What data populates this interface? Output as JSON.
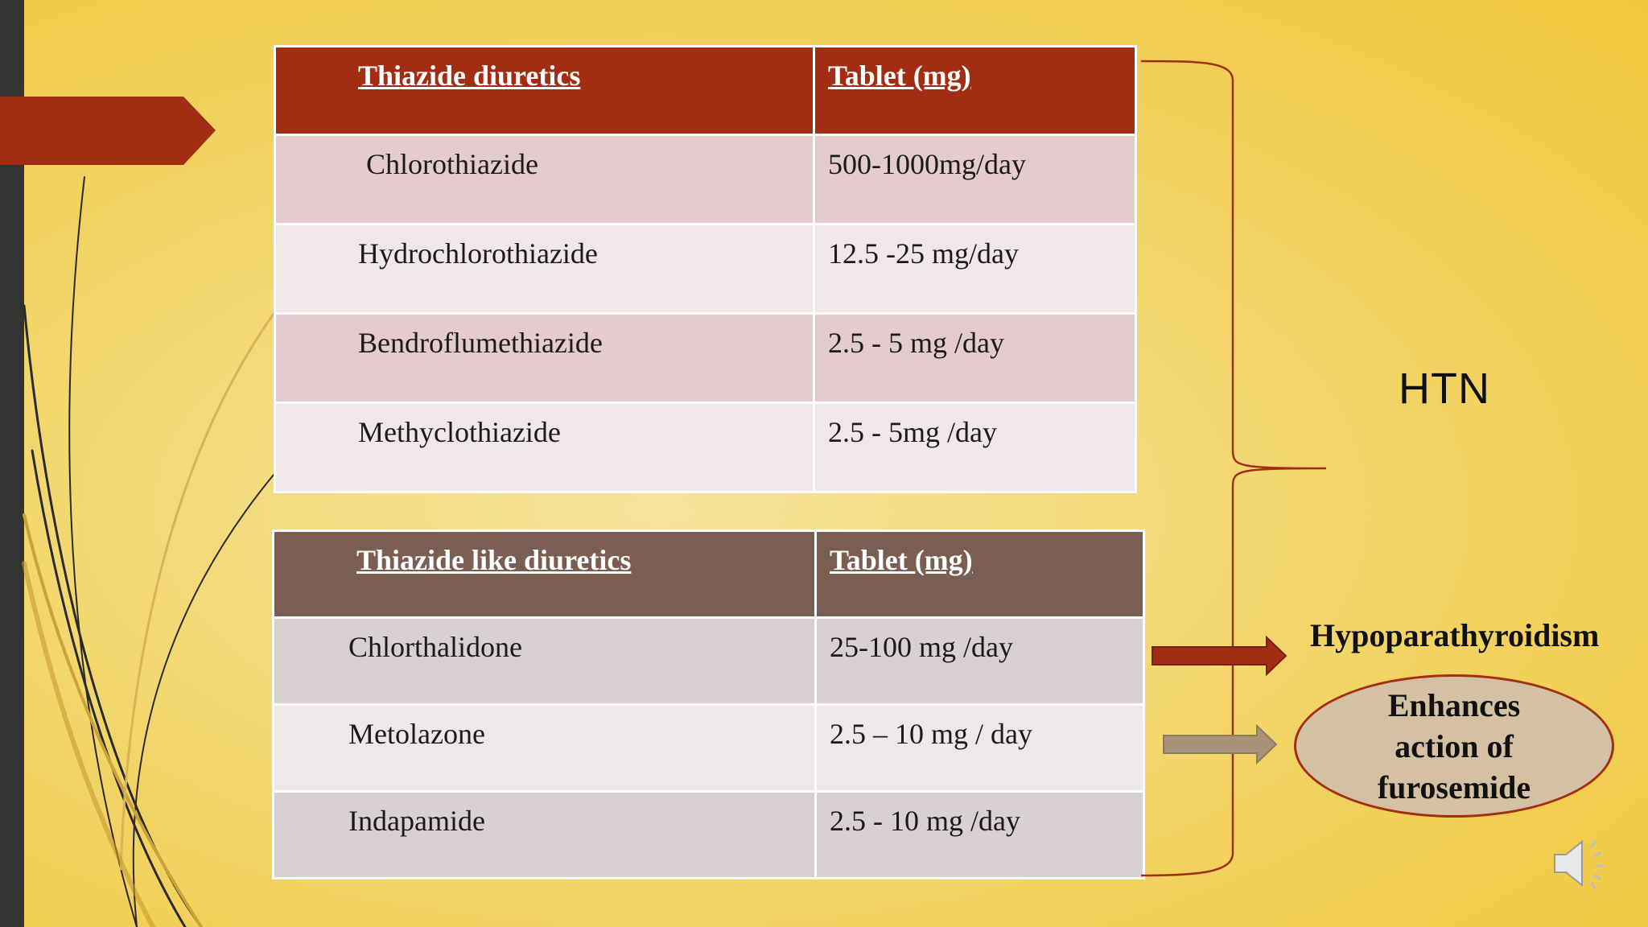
{
  "table1": {
    "header": [
      "Thiazide diuretics",
      "Tablet  (mg)"
    ],
    "rows": [
      [
        "Chlorothiazide",
        "500-1000mg/day"
      ],
      [
        "Hydrochlorothiazide",
        "12.5 -25 mg/day"
      ],
      [
        "Bendroflumethiazide",
        "2.5 - 5 mg /day"
      ],
      [
        "Methyclothiazide",
        "2.5 - 5mg /day"
      ]
    ]
  },
  "table2": {
    "header": [
      "Thiazide like diuretics",
      "Tablet  (mg)"
    ],
    "rows": [
      [
        "Chlorthalidone",
        "25-100 mg /day"
      ],
      [
        "Metolazone",
        "2.5 – 10 mg / day"
      ],
      [
        "Indapamide",
        "2.5 - 10 mg /day"
      ]
    ]
  },
  "right": {
    "htn": "HTN",
    "hypo": "Hypoparathyroidism",
    "ellipse": "Enhances\naction of\nfurosemide"
  },
  "icons": [
    "speaker-icon"
  ],
  "colors": {
    "table1_header": "#a32d12",
    "table2_header": "#7a5e52",
    "arrow_red": "#a32d12",
    "arrow_tan": "#a79177",
    "background": "#f3d76f"
  }
}
